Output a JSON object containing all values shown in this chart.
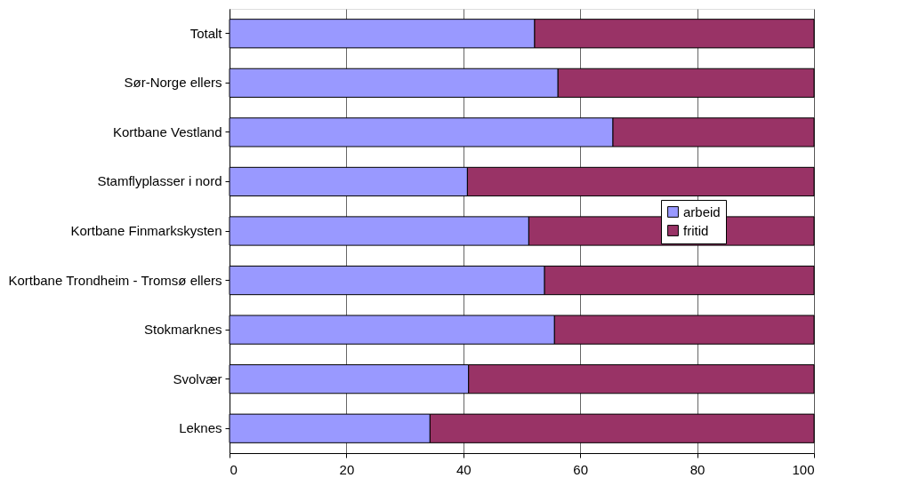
{
  "chart_data": {
    "type": "bar",
    "orientation": "horizontal",
    "stacked": true,
    "categories": [
      "Totalt",
      "Sør-Norge ellers",
      "Kortbane Vestland",
      "Stamflyplasser i nord",
      "Kortbane Finmarkskysten",
      "Kortbane Trondheim - Tromsø ellers",
      "Stokmarknes",
      "Svolvær",
      "Leknes"
    ],
    "series": [
      {
        "name": "arbeid",
        "color": "#9999ff",
        "values": [
          52.2,
          56.2,
          65.6,
          40.7,
          51.2,
          53.9,
          55.6,
          40.9,
          34.3
        ]
      },
      {
        "name": "fritid",
        "color": "#993366",
        "values": [
          47.8,
          43.8,
          34.4,
          59.3,
          48.8,
          46.1,
          44.4,
          59.1,
          65.7
        ]
      }
    ],
    "xlim": [
      0,
      100
    ],
    "xticks": [
      0,
      20,
      40,
      60,
      80,
      100
    ],
    "grid": "x",
    "legend": "right"
  }
}
